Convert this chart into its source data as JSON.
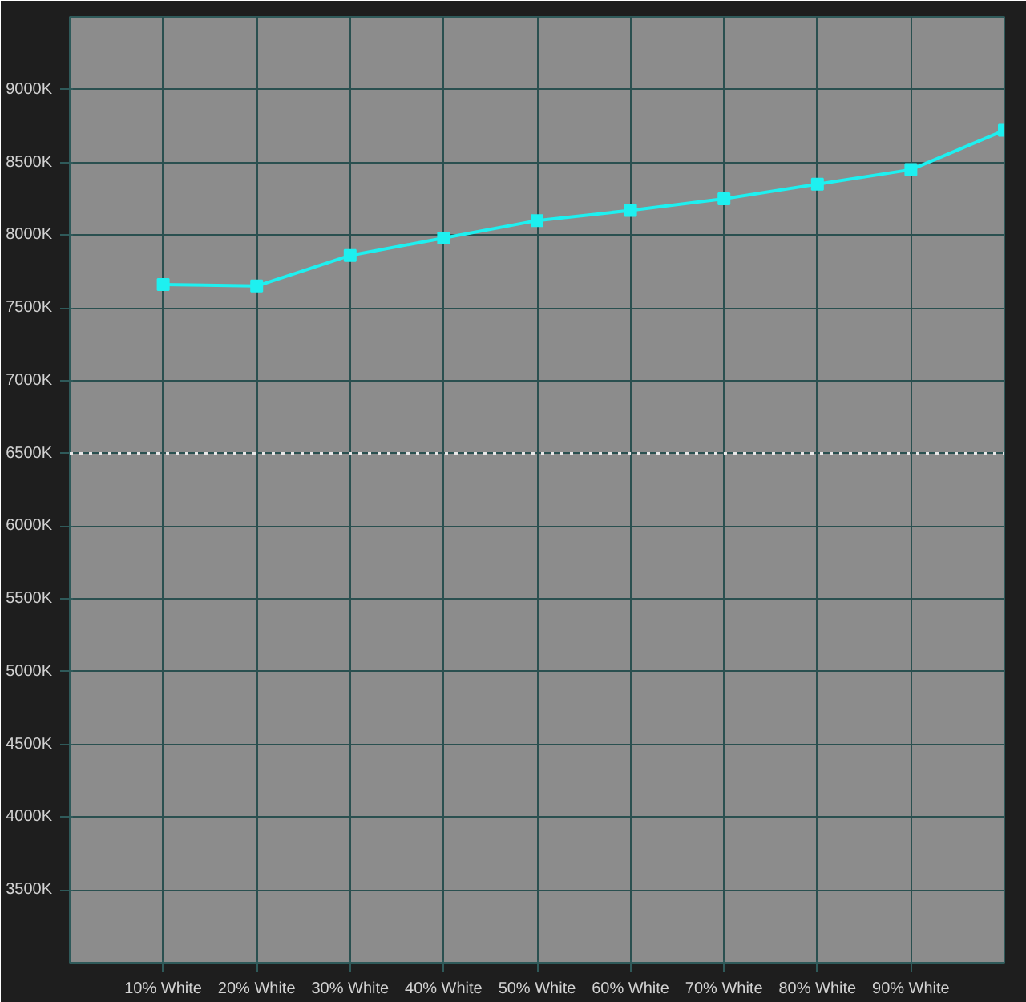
{
  "chart_data": {
    "type": "line",
    "x": [
      10,
      20,
      30,
      40,
      50,
      60,
      70,
      80,
      90,
      100
    ],
    "series": [
      {
        "color": "#1ef0f0",
        "values": [
          7660,
          7650,
          7860,
          7980,
          8100,
          8170,
          8250,
          8350,
          8450,
          8720
        ]
      }
    ],
    "xlim": [
      0,
      100
    ],
    "xticks": [
      {
        "value": 10,
        "label": "10% White"
      },
      {
        "value": 20,
        "label": "20% White"
      },
      {
        "value": 30,
        "label": "30% White"
      },
      {
        "value": 40,
        "label": "40% White"
      },
      {
        "value": 50,
        "label": "50% White"
      },
      {
        "value": 60,
        "label": "60% White"
      },
      {
        "value": 70,
        "label": "70% White"
      },
      {
        "value": 80,
        "label": "80% White"
      },
      {
        "value": 90,
        "label": "90% White"
      }
    ],
    "ylim": [
      3000,
      9500
    ],
    "yticks": [
      {
        "value": 3500,
        "label": "3500K"
      },
      {
        "value": 4000,
        "label": "4000K"
      },
      {
        "value": 4500,
        "label": "4500K"
      },
      {
        "value": 5000,
        "label": "5000K"
      },
      {
        "value": 5500,
        "label": "5500K"
      },
      {
        "value": 6000,
        "label": "6000K"
      },
      {
        "value": 6500,
        "label": "6500K"
      },
      {
        "value": 7000,
        "label": "7000K"
      },
      {
        "value": 7500,
        "label": "7500K"
      },
      {
        "value": 8000,
        "label": "8000K"
      },
      {
        "value": 8500,
        "label": "8500K"
      },
      {
        "value": 9000,
        "label": "9000K"
      }
    ],
    "grid": true,
    "marker": "square",
    "line_style": "solid",
    "ref_lines": [
      {
        "axis": "y",
        "value": 6500,
        "color": "#e8e8e8",
        "line_style": "dotted"
      }
    ]
  }
}
